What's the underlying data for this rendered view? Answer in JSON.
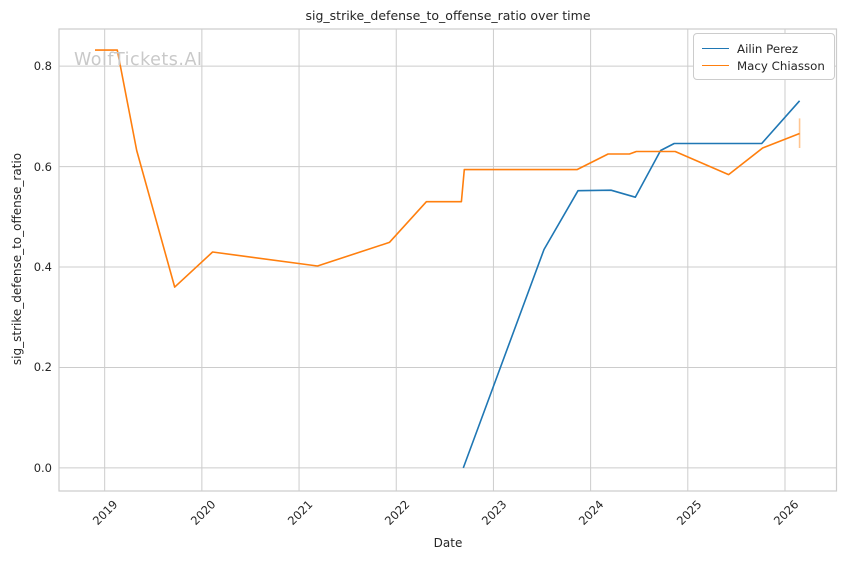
{
  "watermark": "WolfTickets.AI",
  "legend": {
    "items": [
      {
        "label": "Ailin Perez",
        "color": "#1f77b4"
      },
      {
        "label": "Macy Chiasson",
        "color": "#ff7f0e"
      }
    ]
  },
  "chart_data": {
    "type": "line",
    "title": "sig_strike_defense_to_offense_ratio over time",
    "xlabel": "Date",
    "ylabel": "sig_strike_defense_to_offense_ratio",
    "grid": true,
    "legend_position": "upper right",
    "x_range": [
      2018.53,
      2026.53
    ],
    "y_range": [
      -0.046,
      0.874
    ],
    "x_ticks": [
      2019,
      2020,
      2021,
      2022,
      2023,
      2024,
      2025,
      2026
    ],
    "y_ticks": [
      0.0,
      0.2,
      0.4,
      0.6,
      0.8
    ],
    "colors": {
      "grid": "#cccccc",
      "spine": "#cccccc",
      "text": "#262626"
    },
    "series": [
      {
        "name": "Ailin Perez",
        "color": "#1f77b4",
        "points": [
          [
            2022.69,
            0.0
          ],
          [
            2023.52,
            0.435
          ],
          [
            2023.87,
            0.552
          ],
          [
            2024.21,
            0.553
          ],
          [
            2024.46,
            0.539
          ],
          [
            2024.72,
            0.632
          ],
          [
            2024.86,
            0.646
          ],
          [
            2025.76,
            0.646
          ],
          [
            2026.15,
            0.731
          ]
        ]
      },
      {
        "name": "Macy Chiasson",
        "color": "#ff7f0e",
        "points": [
          [
            2018.9,
            0.832
          ],
          [
            2019.13,
            0.832
          ],
          [
            2019.33,
            0.632
          ],
          [
            2019.72,
            0.36
          ],
          [
            2020.11,
            0.43
          ],
          [
            2021.19,
            0.402
          ],
          [
            2021.93,
            0.449
          ],
          [
            2022.31,
            0.53
          ],
          [
            2022.67,
            0.53
          ],
          [
            2022.7,
            0.594
          ],
          [
            2023.86,
            0.594
          ],
          [
            2024.18,
            0.625
          ],
          [
            2024.4,
            0.625
          ],
          [
            2024.47,
            0.63
          ],
          [
            2024.87,
            0.63
          ],
          [
            2025.42,
            0.584
          ],
          [
            2025.77,
            0.637
          ],
          [
            2026.15,
            0.666
          ]
        ],
        "end_tick": {
          "x": 2026.15,
          "y_low": 0.637,
          "y_high": 0.696,
          "opacity": 0.45
        }
      }
    ]
  }
}
